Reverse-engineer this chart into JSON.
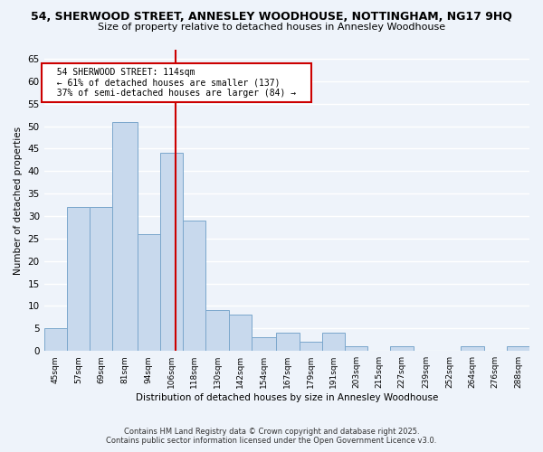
{
  "title_line1": "54, SHERWOOD STREET, ANNESLEY WOODHOUSE, NOTTINGHAM, NG17 9HQ",
  "title_line2": "Size of property relative to detached houses in Annesley Woodhouse",
  "xlabel": "Distribution of detached houses by size in Annesley Woodhouse",
  "ylabel": "Number of detached properties",
  "bin_labels": [
    "45sqm",
    "57sqm",
    "69sqm",
    "81sqm",
    "94sqm",
    "106sqm",
    "118sqm",
    "130sqm",
    "142sqm",
    "154sqm",
    "167sqm",
    "179sqm",
    "191sqm",
    "203sqm",
    "215sqm",
    "227sqm",
    "239sqm",
    "252sqm",
    "264sqm",
    "276sqm",
    "288sqm"
  ],
  "bin_edges": [
    45,
    57,
    69,
    81,
    94,
    106,
    118,
    130,
    142,
    154,
    167,
    179,
    191,
    203,
    215,
    227,
    239,
    252,
    264,
    276,
    288,
    300
  ],
  "counts": [
    5,
    32,
    32,
    51,
    26,
    44,
    29,
    9,
    8,
    3,
    4,
    2,
    4,
    1,
    0,
    1,
    0,
    0,
    1,
    0,
    1
  ],
  "bar_facecolor": "#c8d9ed",
  "bar_edgecolor": "#7ba7cc",
  "vline_x": 114,
  "vline_color": "#cc0000",
  "ylim": [
    0,
    67
  ],
  "yticks": [
    0,
    5,
    10,
    15,
    20,
    25,
    30,
    35,
    40,
    45,
    50,
    55,
    60,
    65
  ],
  "annotation_title": "54 SHERWOOD STREET: 114sqm",
  "annotation_line2": "← 61% of detached houses are smaller (137)",
  "annotation_line3": "37% of semi-detached houses are larger (84) →",
  "annotation_box_color": "#ffffff",
  "annotation_box_edge": "#cc0000",
  "footer_line1": "Contains HM Land Registry data © Crown copyright and database right 2025.",
  "footer_line2": "Contains public sector information licensed under the Open Government Licence v3.0.",
  "background_color": "#eef3fa",
  "grid_color": "#ffffff"
}
